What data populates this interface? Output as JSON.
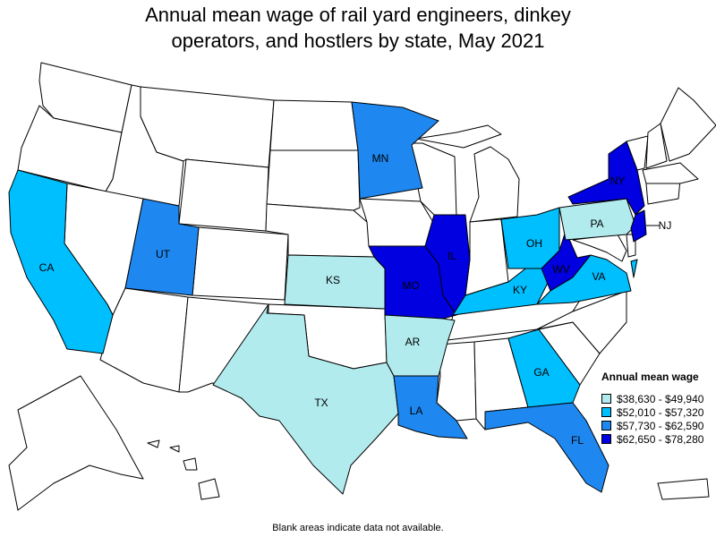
{
  "title_line1": "Annual mean wage of rail yard engineers, dinkey",
  "title_line2": "operators, and hostlers by state, May 2021",
  "legend": {
    "title": "Annual mean wage",
    "items": [
      {
        "label": "$38,630 - $49,940",
        "color": "#b2ebee"
      },
      {
        "label": "$52,010 - $57,320",
        "color": "#00bfff"
      },
      {
        "label": "$57,730 - $62,590",
        "color": "#1e87f0"
      },
      {
        "label": "$62,650 - $78,280",
        "color": "#0000e0"
      }
    ]
  },
  "footnote": "Blank areas indicate data not available.",
  "states": [
    {
      "abbr": "CA",
      "tier": 2
    },
    {
      "abbr": "UT",
      "tier": 3
    },
    {
      "abbr": "MN",
      "tier": 3
    },
    {
      "abbr": "KS",
      "tier": 1
    },
    {
      "abbr": "TX",
      "tier": 1
    },
    {
      "abbr": "MO",
      "tier": 4
    },
    {
      "abbr": "AR",
      "tier": 1
    },
    {
      "abbr": "LA",
      "tier": 3
    },
    {
      "abbr": "IL",
      "tier": 4
    },
    {
      "abbr": "KY",
      "tier": 2
    },
    {
      "abbr": "OH",
      "tier": 2
    },
    {
      "abbr": "WV",
      "tier": 4
    },
    {
      "abbr": "VA",
      "tier": 2
    },
    {
      "abbr": "PA",
      "tier": 1
    },
    {
      "abbr": "NY",
      "tier": 4
    },
    {
      "abbr": "NJ",
      "tier": 4
    },
    {
      "abbr": "GA",
      "tier": 2
    },
    {
      "abbr": "FL",
      "tier": 3
    }
  ]
}
